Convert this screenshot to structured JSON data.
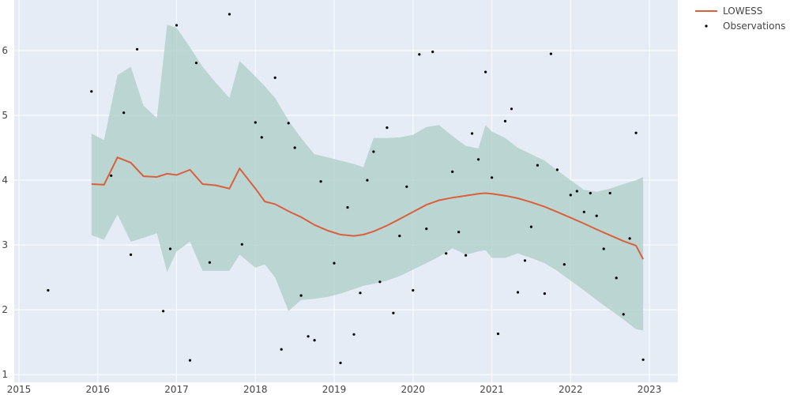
{
  "chart_data": {
    "type": "line",
    "title": "",
    "xlabel": "",
    "ylabel": "",
    "xlim": [
      2014.94,
      2023.36
    ],
    "ylim": [
      0.88,
      6.78
    ],
    "x_ticks": [
      2015,
      2016,
      2017,
      2018,
      2019,
      2020,
      2021,
      2022,
      2023
    ],
    "x_tick_labels": [
      "2015",
      "2016",
      "2017",
      "2018",
      "2019",
      "2020",
      "2021",
      "2022",
      "2023"
    ],
    "y_ticks": [
      1,
      2,
      3,
      4,
      5,
      6
    ],
    "y_tick_labels": [
      "1",
      "2",
      "3",
      "4",
      "5",
      "6"
    ],
    "grid": true,
    "legend_placement": "top-right",
    "colors": {
      "plot_bg": "#e5ecf6",
      "grid": "#ffffff",
      "lowess": "#d9603b",
      "band": "#b0cfca",
      "points": "#000000"
    },
    "legend": [
      {
        "label": "LOWESS",
        "kind": "line"
      },
      {
        "label": "Observations",
        "kind": "marker"
      }
    ],
    "band": {
      "x": [
        2015.92,
        2016.08,
        2016.25,
        2016.42,
        2016.58,
        2016.75,
        2016.88,
        2017.0,
        2017.17,
        2017.33,
        2017.5,
        2017.67,
        2017.8,
        2018.0,
        2018.12,
        2018.25,
        2018.42,
        2018.58,
        2018.75,
        2018.92,
        2019.08,
        2019.25,
        2019.37,
        2019.5,
        2019.67,
        2019.83,
        2020.0,
        2020.17,
        2020.33,
        2020.5,
        2020.67,
        2020.83,
        2020.92,
        2021.0,
        2021.17,
        2021.33,
        2021.5,
        2021.67,
        2021.83,
        2022.0,
        2022.17,
        2022.33,
        2022.5,
        2022.67,
        2022.83,
        2022.92
      ],
      "upper": [
        4.72,
        4.62,
        5.62,
        5.75,
        5.15,
        4.96,
        6.4,
        6.35,
        6.05,
        5.75,
        5.5,
        5.27,
        5.84,
        5.6,
        5.45,
        5.27,
        4.92,
        4.65,
        4.4,
        4.35,
        4.3,
        4.25,
        4.2,
        4.65,
        4.65,
        4.66,
        4.7,
        4.82,
        4.85,
        4.68,
        4.53,
        4.49,
        4.85,
        4.75,
        4.65,
        4.5,
        4.4,
        4.3,
        4.15,
        4.0,
        3.85,
        3.82,
        3.87,
        3.94,
        4.0,
        4.05
      ],
      "lower": [
        3.15,
        3.08,
        3.47,
        3.05,
        3.11,
        3.18,
        2.58,
        2.9,
        3.05,
        2.6,
        2.6,
        2.6,
        2.85,
        2.65,
        2.7,
        2.5,
        1.98,
        2.15,
        2.17,
        2.2,
        2.25,
        2.32,
        2.37,
        2.4,
        2.45,
        2.52,
        2.62,
        2.72,
        2.82,
        2.95,
        2.85,
        2.9,
        2.92,
        2.8,
        2.8,
        2.87,
        2.8,
        2.72,
        2.6,
        2.45,
        2.3,
        2.15,
        2.0,
        1.85,
        1.7,
        1.68
      ]
    },
    "series": [
      {
        "name": "LOWESS",
        "x": [
          2015.92,
          2016.08,
          2016.25,
          2016.42,
          2016.58,
          2016.75,
          2016.88,
          2017.0,
          2017.17,
          2017.33,
          2017.5,
          2017.67,
          2017.8,
          2018.0,
          2018.12,
          2018.25,
          2018.42,
          2018.58,
          2018.75,
          2018.92,
          2019.08,
          2019.25,
          2019.37,
          2019.5,
          2019.67,
          2019.83,
          2020.0,
          2020.17,
          2020.33,
          2020.5,
          2020.67,
          2020.83,
          2020.92,
          2021.0,
          2021.17,
          2021.33,
          2021.5,
          2021.67,
          2021.83,
          2022.0,
          2022.17,
          2022.33,
          2022.5,
          2022.67,
          2022.83,
          2022.92
        ],
        "y": [
          3.94,
          3.93,
          4.35,
          4.27,
          4.06,
          4.05,
          4.1,
          4.08,
          4.16,
          3.94,
          3.92,
          3.87,
          4.18,
          3.87,
          3.67,
          3.63,
          3.52,
          3.43,
          3.31,
          3.22,
          3.16,
          3.14,
          3.16,
          3.21,
          3.3,
          3.4,
          3.51,
          3.62,
          3.69,
          3.73,
          3.76,
          3.79,
          3.8,
          3.79,
          3.76,
          3.72,
          3.66,
          3.59,
          3.51,
          3.42,
          3.33,
          3.24,
          3.15,
          3.06,
          2.99,
          2.78
        ]
      },
      {
        "name": "Observations",
        "x": [
          2015.37,
          2015.92,
          2016.17,
          2016.33,
          2016.42,
          2016.5,
          2016.83,
          2016.92,
          2017.0,
          2017.17,
          2017.25,
          2017.42,
          2017.67,
          2017.83,
          2018.0,
          2018.08,
          2018.25,
          2018.33,
          2018.42,
          2018.5,
          2018.58,
          2018.67,
          2018.75,
          2018.83,
          2019.0,
          2019.08,
          2019.17,
          2019.25,
          2019.33,
          2019.42,
          2019.5,
          2019.58,
          2019.67,
          2019.75,
          2019.83,
          2019.92,
          2020.0,
          2020.08,
          2020.17,
          2020.25,
          2020.42,
          2020.5,
          2020.58,
          2020.67,
          2020.75,
          2020.83,
          2020.92,
          2021.0,
          2021.08,
          2021.17,
          2021.25,
          2021.33,
          2021.42,
          2021.5,
          2021.58,
          2021.67,
          2021.75,
          2021.83,
          2021.92,
          2022.0,
          2022.08,
          2022.17,
          2022.25,
          2022.33,
          2022.42,
          2022.5,
          2022.58,
          2022.67,
          2022.75,
          2022.83,
          2022.92
        ],
        "y": [
          2.3,
          5.37,
          4.07,
          5.04,
          2.85,
          6.02,
          1.98,
          2.94,
          6.39,
          1.22,
          5.81,
          2.73,
          6.56,
          3.01,
          4.89,
          4.66,
          5.58,
          1.39,
          4.88,
          4.5,
          2.22,
          1.59,
          1.53,
          3.98,
          2.72,
          1.18,
          3.58,
          1.62,
          2.26,
          4.0,
          4.44,
          2.43,
          4.81,
          1.95,
          3.14,
          3.9,
          2.3,
          5.94,
          3.25,
          5.98,
          2.87,
          4.13,
          3.2,
          2.84,
          4.72,
          4.32,
          5.67,
          4.04,
          1.63,
          4.91,
          5.1,
          2.27,
          2.76,
          3.28,
          4.23,
          2.25,
          5.95,
          4.16,
          2.7,
          3.77,
          3.83,
          3.51,
          3.8,
          3.45,
          2.94,
          3.8,
          2.49,
          1.93,
          3.1,
          4.73,
          1.23
        ]
      }
    ]
  }
}
